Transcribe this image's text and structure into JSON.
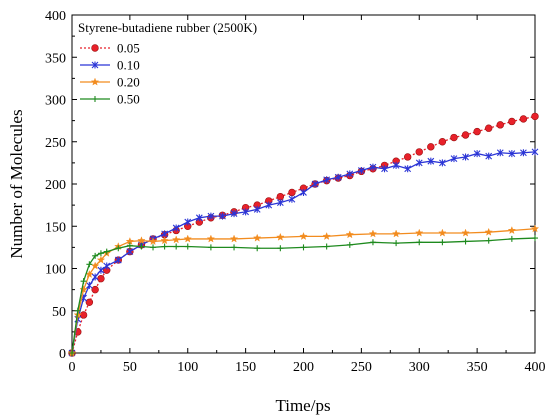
{
  "chart_data": {
    "type": "line",
    "xlabel": "Time/ps",
    "ylabel": "Number of Molecules",
    "xlim": [
      0,
      400
    ],
    "ylim": [
      0,
      400
    ],
    "xticks": [
      0,
      50,
      100,
      150,
      200,
      250,
      300,
      350,
      400
    ],
    "yticks": [
      0,
      50,
      100,
      150,
      200,
      250,
      300,
      350,
      400
    ],
    "grid": false,
    "legend": {
      "title": "Styrene-butadiene rubber (2500K)",
      "placement": "top-left"
    },
    "series": [
      {
        "name": "0.05",
        "color": "#e8212a",
        "marker": "sphere",
        "line": "dotted",
        "x": [
          0,
          5,
          10,
          15,
          20,
          25,
          30,
          40,
          50,
          60,
          70,
          80,
          90,
          100,
          110,
          120,
          130,
          140,
          150,
          160,
          170,
          180,
          190,
          200,
          210,
          220,
          230,
          240,
          250,
          260,
          270,
          280,
          290,
          300,
          310,
          320,
          330,
          340,
          350,
          360,
          370,
          380,
          390,
          400
        ],
        "y": [
          0,
          25,
          45,
          60,
          75,
          88,
          98,
          110,
          120,
          128,
          135,
          140,
          145,
          150,
          155,
          160,
          163,
          167,
          172,
          175,
          180,
          185,
          190,
          195,
          200,
          204,
          207,
          210,
          215,
          218,
          222,
          227,
          232,
          238,
          244,
          250,
          255,
          258,
          262,
          266,
          270,
          274,
          277,
          280
        ]
      },
      {
        "name": "0.10",
        "color": "#2b35d6",
        "marker": "x",
        "line": "solid",
        "x": [
          0,
          5,
          10,
          15,
          20,
          25,
          30,
          40,
          50,
          60,
          70,
          80,
          90,
          100,
          110,
          120,
          130,
          140,
          150,
          160,
          170,
          180,
          190,
          200,
          210,
          220,
          230,
          240,
          250,
          260,
          270,
          280,
          290,
          300,
          310,
          320,
          330,
          340,
          350,
          360,
          370,
          380,
          390,
          400
        ],
        "y": [
          0,
          40,
          65,
          80,
          90,
          98,
          103,
          110,
          120,
          128,
          135,
          141,
          148,
          155,
          160,
          162,
          162,
          165,
          167,
          170,
          175,
          178,
          182,
          190,
          200,
          205,
          208,
          212,
          216,
          220,
          218,
          222,
          218,
          225,
          227,
          225,
          230,
          232,
          236,
          233,
          237,
          236,
          237,
          238
        ]
      },
      {
        "name": "0.20",
        "color": "#f28c1f",
        "marker": "star",
        "line": "solid",
        "x": [
          0,
          5,
          10,
          15,
          20,
          25,
          30,
          40,
          50,
          60,
          70,
          80,
          90,
          100,
          120,
          140,
          160,
          180,
          200,
          220,
          240,
          260,
          280,
          300,
          320,
          340,
          360,
          380,
          400
        ],
        "y": [
          0,
          45,
          75,
          93,
          103,
          110,
          118,
          126,
          132,
          133,
          132,
          133,
          134,
          135,
          135,
          135,
          136,
          137,
          138,
          138,
          140,
          141,
          141,
          142,
          142,
          142,
          143,
          145,
          147
        ]
      },
      {
        "name": "0.50",
        "color": "#1e8a1e",
        "marker": "plus",
        "line": "solid",
        "x": [
          0,
          5,
          10,
          15,
          20,
          25,
          30,
          40,
          50,
          60,
          70,
          80,
          90,
          100,
          120,
          140,
          160,
          180,
          200,
          220,
          240,
          260,
          280,
          300,
          320,
          340,
          360,
          380,
          400
        ],
        "y": [
          0,
          50,
          85,
          105,
          115,
          118,
          120,
          124,
          127,
          126,
          125,
          126,
          126,
          126,
          125,
          125,
          124,
          124,
          125,
          126,
          128,
          131,
          130,
          131,
          131,
          132,
          133,
          135,
          136
        ]
      }
    ]
  }
}
